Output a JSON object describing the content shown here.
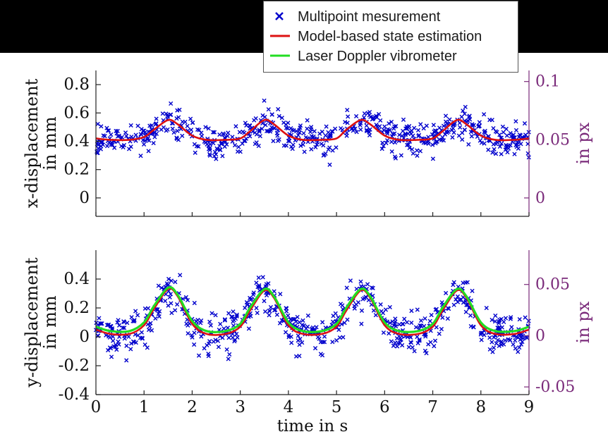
{
  "chart_data": [
    {
      "type": "scatter",
      "panel": "top",
      "ylabel": "x-displacement\nin mm",
      "ylabel_lines": [
        "x-displacement",
        "in mm"
      ],
      "ylim": [
        -0.13,
        0.9
      ],
      "yticks": [
        0,
        0.2,
        0.4,
        0.6,
        0.8
      ],
      "ytick_labels": [
        "0",
        "0.2",
        "0.4",
        "0.6",
        "0.8"
      ],
      "right_ylabel": "in px",
      "right_ylim": [
        -0.0158,
        0.1095
      ],
      "right_yticks": [
        0,
        0.05,
        0.1
      ],
      "right_ytick_labels": [
        "0",
        "0.05",
        "0.1"
      ],
      "xlim": [
        0,
        9
      ],
      "grid": false,
      "series": [
        {
          "name": "Multipoint mesurement",
          "kind": "scatter",
          "color": "#0000cc",
          "marker": "x",
          "period_s": 2,
          "amplitude_mm": 0.14,
          "mean_mm": 0.43,
          "noise_mm": 0.1
        },
        {
          "name": "Model-based state estimation",
          "kind": "line",
          "color": "#dd1111",
          "x": [
            0,
            0.3,
            0.7,
            1.0,
            1.2,
            1.5,
            1.7,
            2.0,
            2.3,
            2.7,
            3.0,
            3.2,
            3.5,
            3.7,
            4.0,
            4.3,
            4.7,
            5.0,
            5.2,
            5.5,
            5.7,
            6.0,
            6.3,
            6.7,
            7.0,
            7.2,
            7.5,
            7.7,
            8.0,
            8.3,
            8.7,
            9.0
          ],
          "y": [
            0.42,
            0.41,
            0.41,
            0.43,
            0.48,
            0.55,
            0.52,
            0.44,
            0.41,
            0.41,
            0.42,
            0.47,
            0.55,
            0.52,
            0.44,
            0.41,
            0.41,
            0.42,
            0.48,
            0.55,
            0.52,
            0.44,
            0.41,
            0.41,
            0.42,
            0.47,
            0.55,
            0.52,
            0.44,
            0.41,
            0.41,
            0.42
          ]
        }
      ]
    },
    {
      "type": "scatter",
      "panel": "bottom",
      "ylabel": "y-displacement\nin mm",
      "ylabel_lines": [
        "y-displacement",
        "in mm"
      ],
      "xlabel": "time in s",
      "ylim": [
        -0.4,
        0.6
      ],
      "yticks": [
        -0.4,
        -0.2,
        0,
        0.2,
        0.4
      ],
      "ytick_labels": [
        "-0.4",
        "-0.2",
        "0",
        "0.2",
        "0.4"
      ],
      "right_ylabel": "in px",
      "right_ylim": [
        -0.0575,
        0.0835
      ],
      "right_yticks": [
        -0.05,
        0,
        0.05
      ],
      "right_ytick_labels": [
        "-0.05",
        "0",
        "0.05"
      ],
      "xlim": [
        0,
        9
      ],
      "xticks": [
        0,
        1,
        2,
        3,
        4,
        5,
        6,
        7,
        8,
        9
      ],
      "xtick_labels": [
        "0",
        "1",
        "2",
        "3",
        "4",
        "5",
        "6",
        "7",
        "8",
        "9"
      ],
      "grid": false,
      "series": [
        {
          "name": "Multipoint mesurement",
          "kind": "scatter",
          "color": "#0000cc",
          "marker": "x",
          "period_s": 2,
          "amplitude_mm": 0.3,
          "mean_mm": 0.08,
          "noise_mm": 0.12
        },
        {
          "name": "Model-based state estimation",
          "kind": "line",
          "color": "#dd1111",
          "x": [
            0,
            0.3,
            0.7,
            1.0,
            1.2,
            1.5,
            1.7,
            2.0,
            2.3,
            2.7,
            3.0,
            3.2,
            3.5,
            3.7,
            4.0,
            4.3,
            4.7,
            5.0,
            5.2,
            5.5,
            5.7,
            6.0,
            6.3,
            6.7,
            7.0,
            7.2,
            7.5,
            7.7,
            8.0,
            8.3,
            8.7,
            9.0
          ],
          "y": [
            0.05,
            0.02,
            0.02,
            0.08,
            0.19,
            0.33,
            0.28,
            0.09,
            0.02,
            0.02,
            0.07,
            0.18,
            0.32,
            0.27,
            0.08,
            0.02,
            0.02,
            0.07,
            0.18,
            0.32,
            0.27,
            0.08,
            0.02,
            0.02,
            0.07,
            0.18,
            0.32,
            0.27,
            0.08,
            0.02,
            0.02,
            0.05
          ]
        },
        {
          "name": "Laser Doppler vibrometer",
          "kind": "line",
          "color": "#22dd22",
          "x": [
            0,
            0.3,
            0.7,
            1.0,
            1.2,
            1.5,
            1.7,
            2.0,
            2.3,
            2.7,
            3.0,
            3.2,
            3.5,
            3.7,
            4.0,
            4.3,
            4.7,
            5.0,
            5.2,
            5.5,
            5.7,
            6.0,
            6.3,
            6.7,
            7.0,
            7.2,
            7.5,
            7.7,
            8.0,
            8.3,
            8.7,
            9.0
          ],
          "y": [
            0.07,
            0.04,
            0.04,
            0.1,
            0.21,
            0.34,
            0.29,
            0.11,
            0.04,
            0.04,
            0.09,
            0.2,
            0.33,
            0.28,
            0.1,
            0.04,
            0.04,
            0.09,
            0.2,
            0.33,
            0.28,
            0.1,
            0.04,
            0.04,
            0.09,
            0.2,
            0.33,
            0.28,
            0.1,
            0.04,
            0.04,
            0.07
          ]
        }
      ]
    }
  ],
  "legend": {
    "placement": "top-center",
    "items": [
      {
        "label": "Multipoint mesurement",
        "color": "#0000cc",
        "marker": "x"
      },
      {
        "label": "Model-based state estimation",
        "color": "#dd1111",
        "marker": "line"
      },
      {
        "label": "Laser Doppler vibrometer",
        "color": "#22dd22",
        "marker": "line"
      }
    ]
  },
  "colors": {
    "axis": "#222222",
    "right_axis": "#7a2a7a",
    "scatter": "#0000cc",
    "model": "#dd1111",
    "ldv": "#22dd22"
  }
}
